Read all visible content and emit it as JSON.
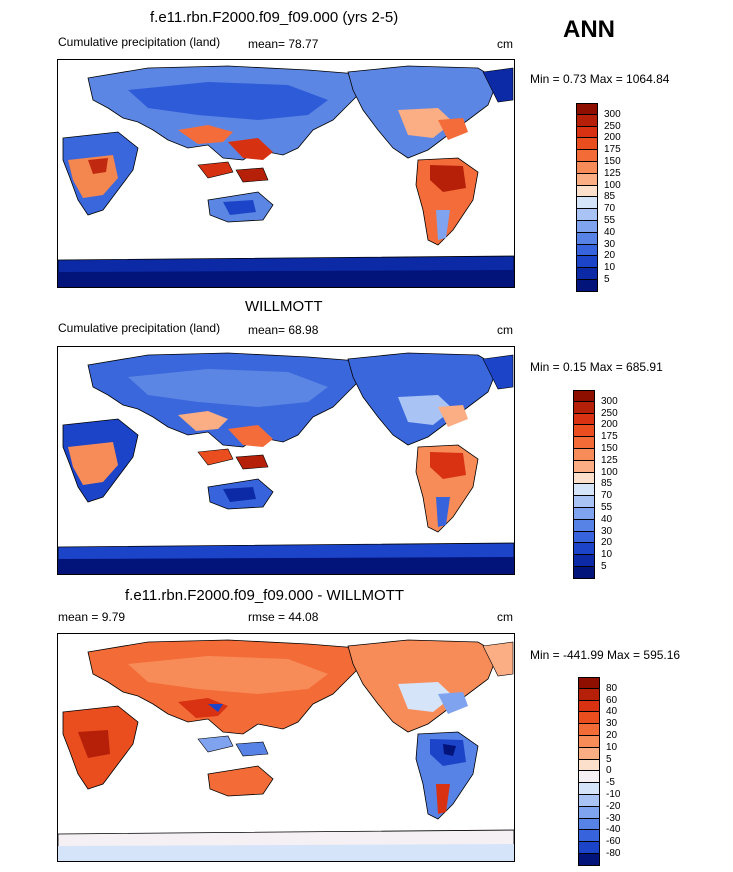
{
  "season": "ANN",
  "panels": [
    {
      "id": "model",
      "title": "f.e11.rbn.F2000.f09_f09.000 (yrs 2-5)",
      "left_label": "Cumulative precipitation (land)",
      "stat1": "mean=  78.77",
      "stat2": "",
      "units": "cm",
      "minmax": "Min =   0.73 Max = 1064.84",
      "levels": [
        "300",
        "250",
        "200",
        "175",
        "150",
        "125",
        "100",
        "85",
        "70",
        "55",
        "40",
        "30",
        "20",
        "10",
        "5"
      ],
      "colors": [
        "#8e0e00",
        "#b62008",
        "#d83212",
        "#ea4d1e",
        "#f36c38",
        "#f88c58",
        "#fbad84",
        "#fde0cc",
        "#d6e4fa",
        "#a9c4f4",
        "#7fa3ee",
        "#5883e6",
        "#3764dc",
        "#1c44c8",
        "#0c2aa6",
        "#02137a"
      ]
    },
    {
      "id": "obs",
      "title": "WILLMOTT",
      "left_label": "Cumulative precipitation (land)",
      "stat1": "mean=  68.98",
      "stat2": "",
      "units": "cm",
      "minmax": "Min =   0.15 Max = 685.91",
      "levels": [
        "300",
        "250",
        "200",
        "175",
        "150",
        "125",
        "100",
        "85",
        "70",
        "55",
        "40",
        "30",
        "20",
        "10",
        "5"
      ],
      "colors": [
        "#8e0e00",
        "#b62008",
        "#d83212",
        "#ea4d1e",
        "#f36c38",
        "#f88c58",
        "#fbad84",
        "#fde0cc",
        "#d6e4fa",
        "#a9c4f4",
        "#7fa3ee",
        "#5883e6",
        "#3764dc",
        "#1c44c8",
        "#0c2aa6",
        "#02137a"
      ]
    },
    {
      "id": "diff",
      "title": "f.e11.rbn.F2000.f09_f09.000 - WILLMOTT",
      "left_label": "mean =   9.79",
      "stat1": "rmse =  44.08",
      "stat2": "",
      "units": "cm",
      "minmax": "Min = -441.99 Max = 595.16",
      "levels": [
        "80",
        "60",
        "40",
        "30",
        "20",
        "10",
        "5",
        "0",
        "-5",
        "-10",
        "-20",
        "-30",
        "-40",
        "-60",
        "-80"
      ],
      "colors": [
        "#8e0e00",
        "#b62008",
        "#d83212",
        "#ea4d1e",
        "#f36c38",
        "#f88c58",
        "#fbad84",
        "#fde0cc",
        "#f4f0f4",
        "#d6e4fa",
        "#a9c4f4",
        "#7fa3ee",
        "#5883e6",
        "#3764dc",
        "#1c44c8",
        "#02137a"
      ]
    }
  ]
}
